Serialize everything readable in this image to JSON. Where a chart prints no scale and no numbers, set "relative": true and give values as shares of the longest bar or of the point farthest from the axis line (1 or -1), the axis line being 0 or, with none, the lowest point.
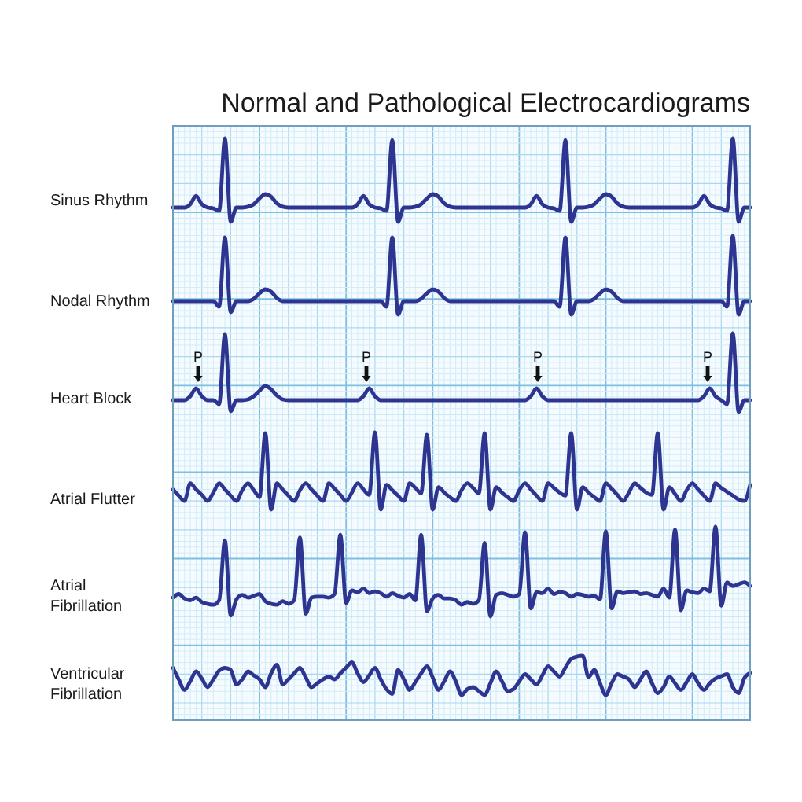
{
  "chart_data": [
    {
      "type": "line",
      "title": "Normal and Pathological Electrocardiograms",
      "ylabel": "Sinus Rhythm",
      "relative": true,
      "grid": true,
      "tick_labels": false,
      "color": "#2e3590",
      "categories": [
        null,
        null,
        null,
        null,
        null,
        null,
        null,
        null,
        null,
        null,
        null,
        null,
        null,
        null,
        null,
        null,
        null,
        null,
        null,
        null,
        null,
        null,
        null,
        null,
        null,
        null,
        null,
        null,
        null,
        null,
        null,
        null,
        null,
        null,
        null,
        null,
        null,
        null,
        null,
        null,
        null,
        null,
        null,
        null,
        null,
        null,
        null,
        null,
        null,
        null,
        null,
        null,
        null,
        null,
        null,
        null,
        null,
        null,
        null,
        null,
        null,
        null,
        null,
        null,
        null,
        null,
        null,
        null,
        null,
        null,
        null,
        null,
        null,
        null,
        null,
        null,
        null,
        null,
        null,
        null,
        null,
        null,
        null,
        null,
        null,
        null,
        null,
        null,
        null,
        null,
        null,
        null,
        null,
        null,
        null,
        null,
        null,
        null,
        null,
        null,
        null
      ],
      "values": [
        0.17,
        0.17,
        0.17,
        0.21,
        0.31,
        0.21,
        0.17,
        0.16,
        0.13,
        1.0,
        0,
        0.17,
        0.17,
        0.18,
        0.21,
        0.28,
        0.33,
        0.3,
        0.22,
        0.18,
        0.17,
        0.17,
        0.17,
        0.17,
        0.17,
        0.17,
        0.17,
        0.17,
        0.17,
        0.17,
        0.17,
        0.17,
        0.21,
        0.31,
        0.21,
        0.17,
        0.16,
        0.13,
        0.98,
        0,
        0.17,
        0.17,
        0.18,
        0.21,
        0.28,
        0.33,
        0.3,
        0.22,
        0.18,
        0.17,
        0.17,
        0.17,
        0.17,
        0.17,
        0.17,
        0.17,
        0.17,
        0.17,
        0.17,
        0.17,
        0.17,
        0.17,
        0.21,
        0.31,
        0.21,
        0.17,
        0.16,
        0.13,
        0.98,
        0,
        0.17,
        0.17,
        0.18,
        0.21,
        0.28,
        0.33,
        0.3,
        0.22,
        0.18,
        0.17,
        0.17,
        0.17,
        0.17,
        0.17,
        0.17,
        0.17,
        0.17,
        0.17,
        0.17,
        0.17,
        0.17,
        0.21,
        0.31,
        0.21,
        0.17,
        0.16,
        0.13,
        1.0,
        0,
        0.17,
        0.17
      ]
    },
    {
      "type": "line",
      "ylabel": "Nodal Rhythm",
      "relative": true,
      "grid": true,
      "tick_labels": false,
      "color": "#2e3590",
      "categories": [
        null,
        null,
        null,
        null,
        null,
        null,
        null,
        null,
        null,
        null,
        null,
        null,
        null,
        null,
        null,
        null,
        null,
        null,
        null,
        null,
        null,
        null,
        null,
        null,
        null,
        null,
        null,
        null,
        null,
        null,
        null,
        null,
        null,
        null,
        null,
        null,
        null,
        null,
        null,
        null,
        null,
        null,
        null,
        null,
        null,
        null,
        null,
        null,
        null,
        null,
        null,
        null,
        null,
        null,
        null,
        null,
        null,
        null,
        null,
        null,
        null,
        null,
        null,
        null,
        null,
        null,
        null,
        null,
        null,
        null,
        null,
        null,
        null,
        null,
        null,
        null,
        null,
        null,
        null,
        null,
        null,
        null,
        null,
        null,
        null,
        null,
        null,
        null,
        null,
        null,
        null,
        null,
        null,
        null,
        null,
        null,
        null,
        null,
        null,
        null,
        null
      ],
      "values": [
        0.17,
        0.17,
        0.17,
        0.17,
        0.17,
        0.17,
        0.17,
        0.17,
        0.1,
        0.98,
        0.03,
        0.17,
        0.17,
        0.17,
        0.2,
        0.27,
        0.32,
        0.29,
        0.21,
        0.17,
        0.17,
        0.17,
        0.17,
        0.17,
        0.17,
        0.17,
        0.17,
        0.17,
        0.17,
        0.17,
        0.17,
        0.17,
        0.17,
        0.17,
        0.17,
        0.17,
        0.17,
        0.1,
        0.98,
        0,
        0.17,
        0.17,
        0.17,
        0.2,
        0.27,
        0.32,
        0.29,
        0.21,
        0.17,
        0.17,
        0.17,
        0.17,
        0.17,
        0.17,
        0.17,
        0.17,
        0.17,
        0.17,
        0.17,
        0.17,
        0.17,
        0.17,
        0.17,
        0.17,
        0.17,
        0.17,
        0.17,
        0.1,
        0.98,
        0,
        0.17,
        0.17,
        0.17,
        0.2,
        0.27,
        0.32,
        0.29,
        0.21,
        0.17,
        0.17,
        0.17,
        0.17,
        0.17,
        0.17,
        0.17,
        0.17,
        0.17,
        0.17,
        0.17,
        0.17,
        0.17,
        0.17,
        0.17,
        0.17,
        0.17,
        0.17,
        0.1,
        1.0,
        0,
        0.17,
        0.17
      ]
    },
    {
      "type": "line",
      "ylabel": "Heart Block",
      "relative": true,
      "grid": true,
      "tick_labels": false,
      "color": "#2e3590",
      "categories": [
        null,
        null,
        null,
        null,
        null,
        null,
        null,
        null,
        null,
        null,
        null,
        null,
        null,
        null,
        null,
        null,
        null,
        null,
        null,
        null,
        null,
        null,
        null,
        null,
        null,
        null,
        null,
        null,
        null,
        null,
        null,
        null,
        null,
        null,
        null,
        null,
        null,
        null,
        null,
        null,
        null,
        null,
        null,
        null,
        null,
        null,
        null,
        null,
        null,
        null,
        null,
        null,
        null,
        null,
        null,
        null,
        null,
        null,
        null,
        null,
        null,
        null,
        null,
        null,
        null,
        null,
        null,
        null,
        null,
        null,
        null,
        null,
        null,
        null,
        null,
        null,
        null,
        null,
        null,
        null,
        null,
        null,
        null,
        null,
        null,
        null,
        null,
        null,
        null,
        null,
        null,
        null,
        null,
        null,
        null,
        null,
        null,
        null,
        null,
        null,
        null
      ],
      "values": [
        0.15,
        0.15,
        0.15,
        0.2,
        0.3,
        0.2,
        0.15,
        0.15,
        0.1,
        0.99,
        0.01,
        0.15,
        0.15,
        0.16,
        0.2,
        0.27,
        0.33,
        0.29,
        0.21,
        0.16,
        0.15,
        0.15,
        0.15,
        0.15,
        0.15,
        0.15,
        0.15,
        0.15,
        0.15,
        0.15,
        0.15,
        0.15,
        0.15,
        0.2,
        0.3,
        0.2,
        0.15,
        0.15,
        0.15,
        0.15,
        0.15,
        0.15,
        0.15,
        0.15,
        0.15,
        0.15,
        0.15,
        0.15,
        0.15,
        0.15,
        0.15,
        0.15,
        0.15,
        0.15,
        0.15,
        0.15,
        0.15,
        0.15,
        0.15,
        0.15,
        0.15,
        0.15,
        0.2,
        0.3,
        0.2,
        0.15,
        0.15,
        0.15,
        0.15,
        0.15,
        0.15,
        0.15,
        0.15,
        0.15,
        0.15,
        0.15,
        0.15,
        0.15,
        0.15,
        0.15,
        0.15,
        0.15,
        0.15,
        0.15,
        0.15,
        0.15,
        0.15,
        0.15,
        0.15,
        0.15,
        0.15,
        0.15,
        0.2,
        0.3,
        0.2,
        0.15,
        0.1,
        1.0,
        0,
        0.15,
        0.15
      ],
      "annotations": [
        "P",
        "P",
        "P",
        "P"
      ]
    },
    {
      "type": "line",
      "ylabel": "Atrial Flutter",
      "relative": true,
      "grid": true,
      "tick_labels": false,
      "color": "#2e3590",
      "categories": [
        null,
        null,
        null,
        null,
        null,
        null,
        null,
        null,
        null,
        null,
        null,
        null,
        null,
        null,
        null,
        null,
        null,
        null,
        null,
        null,
        null,
        null,
        null,
        null,
        null,
        null,
        null,
        null,
        null,
        null,
        null,
        null,
        null,
        null,
        null,
        null,
        null,
        null,
        null,
        null,
        null,
        null,
        null,
        null,
        null,
        null,
        null,
        null,
        null,
        null,
        null,
        null,
        null,
        null,
        null,
        null,
        null,
        null,
        null,
        null,
        null,
        null,
        null,
        null,
        null,
        null,
        null,
        null,
        null,
        null,
        null,
        null,
        null,
        null,
        null,
        null,
        null,
        null,
        null,
        null,
        null,
        null,
        null,
        null,
        null,
        null,
        null,
        null,
        null,
        null,
        null,
        null,
        null,
        null,
        null,
        null,
        null,
        null,
        null,
        null,
        null
      ],
      "values": [
        0.26,
        0.18,
        0.11,
        0.34,
        0.26,
        0.19,
        0.11,
        0.22,
        0.34,
        0.26,
        0.18,
        0.11,
        0.25,
        0.34,
        0.25,
        0.16,
        0.99,
        0,
        0.34,
        0.26,
        0.18,
        0.11,
        0.25,
        0.34,
        0.26,
        0.18,
        0.11,
        0.34,
        0.27,
        0.19,
        0.11,
        0.22,
        0.34,
        0.26,
        0.19,
        1.0,
        0,
        0.32,
        0.25,
        0.18,
        0.11,
        0.34,
        0.28,
        0.21,
        0.97,
        0,
        0.29,
        0.22,
        0.16,
        0.11,
        0.25,
        0.34,
        0.28,
        0.21,
        0.99,
        0,
        0.29,
        0.22,
        0.16,
        0.11,
        0.25,
        0.34,
        0.26,
        0.18,
        0.11,
        0.34,
        0.28,
        0.22,
        0.18,
        0.99,
        0,
        0.29,
        0.22,
        0.16,
        0.11,
        0.34,
        0.27,
        0.19,
        0.11,
        0.22,
        0.34,
        0.28,
        0.22,
        0.19,
        0.99,
        0,
        0.29,
        0.2,
        0.11,
        0.25,
        0.34,
        0.26,
        0.18,
        0.11,
        0.34,
        0.28,
        0.23,
        0.18,
        0.13,
        0.11,
        0.32
      ]
    },
    {
      "type": "line",
      "ylabel": "Atrial\nFibrillation",
      "relative": true,
      "grid": true,
      "tick_labels": false,
      "color": "#2e3590",
      "categories": [
        null,
        null,
        null,
        null,
        null,
        null,
        null,
        null,
        null,
        null,
        null,
        null,
        null,
        null,
        null,
        null,
        null,
        null,
        null,
        null,
        null,
        null,
        null,
        null,
        null,
        null,
        null,
        null,
        null,
        null,
        null,
        null,
        null,
        null,
        null,
        null,
        null,
        null,
        null,
        null,
        null,
        null,
        null,
        null,
        null,
        null,
        null,
        null,
        null,
        null,
        null,
        null,
        null,
        null,
        null,
        null,
        null,
        null,
        null,
        null,
        null,
        null,
        null,
        null,
        null,
        null,
        null,
        null,
        null,
        null,
        null,
        null,
        null,
        null,
        null,
        null,
        null,
        null,
        null,
        null,
        null,
        null,
        null,
        null,
        null,
        null,
        null,
        null,
        null,
        null,
        null,
        null,
        null,
        null,
        null,
        null,
        null,
        null,
        null,
        null,
        null
      ],
      "values": [
        0.21,
        0.25,
        0.2,
        0.18,
        0.21,
        0.16,
        0.14,
        0.13,
        0.18,
        0.85,
        0.01,
        0.19,
        0.24,
        0.21,
        0.23,
        0.25,
        0.17,
        0.14,
        0.13,
        0.17,
        0.14,
        0.18,
        0.88,
        0.03,
        0.21,
        0.22,
        0.22,
        0.21,
        0.25,
        0.91,
        0.15,
        0.29,
        0.27,
        0.31,
        0.26,
        0.28,
        0.26,
        0.22,
        0.26,
        0.23,
        0.21,
        0.25,
        0.18,
        0.91,
        0.06,
        0.2,
        0.24,
        0.2,
        0.2,
        0.18,
        0.13,
        0.16,
        0.14,
        0.18,
        0.82,
        0,
        0.24,
        0.26,
        0.24,
        0.22,
        0.25,
        0.94,
        0.09,
        0.27,
        0.26,
        0.31,
        0.25,
        0.27,
        0.26,
        0.22,
        0.25,
        0.24,
        0.22,
        0.23,
        0.19,
        0.95,
        0.09,
        0.28,
        0.26,
        0.27,
        0.28,
        0.25,
        0.26,
        0.24,
        0.22,
        0.31,
        0.21,
        0.97,
        0.07,
        0.29,
        0.27,
        0.26,
        0.31,
        0.28,
        1.0,
        0.12,
        0.38,
        0.34,
        0.36,
        0.38,
        0.34
      ]
    },
    {
      "type": "line",
      "ylabel": "Ventricular\nFibrillation",
      "relative": true,
      "grid": true,
      "tick_labels": false,
      "color": "#2e3590",
      "categories": [
        null,
        null,
        null,
        null,
        null,
        null,
        null,
        null,
        null,
        null,
        null,
        null,
        null,
        null,
        null,
        null,
        null,
        null,
        null,
        null,
        null,
        null,
        null,
        null,
        null,
        null,
        null,
        null,
        null,
        null,
        null,
        null,
        null,
        null,
        null,
        null,
        null,
        null,
        null,
        null,
        null,
        null,
        null,
        null,
        null,
        null,
        null,
        null,
        null,
        null,
        null,
        null,
        null,
        null,
        null,
        null,
        null,
        null,
        null,
        null,
        null,
        null,
        null,
        null,
        null,
        null,
        null,
        null,
        null,
        null,
        null,
        null,
        null,
        null,
        null,
        null,
        null,
        null,
        null,
        null,
        null,
        null,
        null,
        null,
        null,
        null,
        null,
        null,
        null,
        null,
        null,
        null,
        null,
        null,
        null,
        null,
        null,
        null,
        null,
        null,
        null
      ],
      "values": [
        0.69,
        0.4,
        0.13,
        0.35,
        0.6,
        0.42,
        0.2,
        0.4,
        0.62,
        0.69,
        0.64,
        0.27,
        0.4,
        0.6,
        0.5,
        0.4,
        0.2,
        0.55,
        0.77,
        0.27,
        0.4,
        0.55,
        0.69,
        0.45,
        0.2,
        0.3,
        0.4,
        0.47,
        0.4,
        0.55,
        0.7,
        0.83,
        0.55,
        0.33,
        0.5,
        0.69,
        0.4,
        0.15,
        0.03,
        0.64,
        0.4,
        0.13,
        0.33,
        0.55,
        0.73,
        0.45,
        0.13,
        0.35,
        0.6,
        0.35,
        0,
        0.15,
        0.2,
        0.1,
        0,
        0.3,
        0.6,
        0.35,
        0.1,
        0.15,
        0.35,
        0.53,
        0.4,
        0.27,
        0.5,
        0.73,
        0.6,
        0.47,
        0.7,
        0.92,
        0.98,
        1.0,
        0.45,
        0.64,
        0.3,
        0,
        0.3,
        0.53,
        0.47,
        0.4,
        0.2,
        0.4,
        0.6,
        0.3,
        0.05,
        0.2,
        0.47,
        0.3,
        0.13,
        0.33,
        0.53,
        0.3,
        0.13,
        0.3,
        0.42,
        0.48,
        0.53,
        0.2,
        0.05,
        0.43,
        0.56
      ]
    }
  ]
}
